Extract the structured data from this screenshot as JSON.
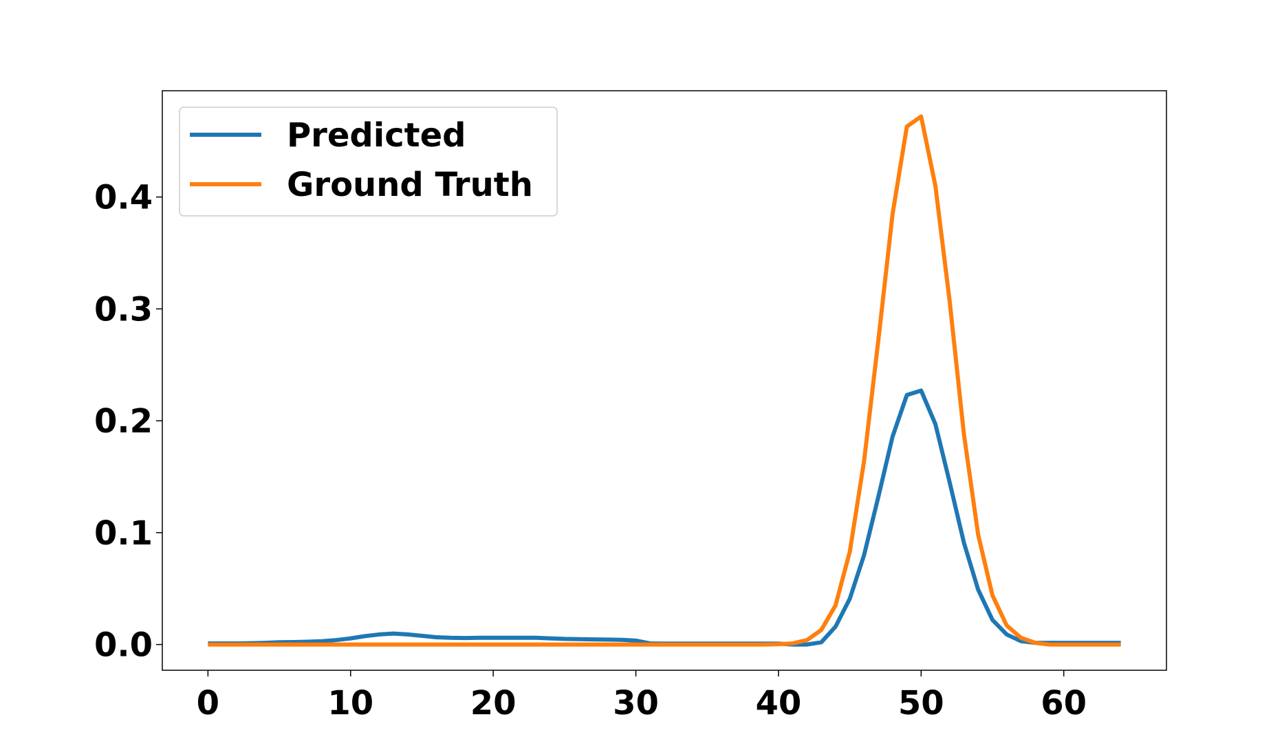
{
  "colors": {
    "predicted": "#1f77b4",
    "ground_truth": "#ff7f0e",
    "axes": "#000000",
    "legend_border": "#cccccc"
  },
  "chart_data": {
    "type": "line",
    "title": "",
    "xlabel": "",
    "ylabel": "",
    "xlim": [
      -3.2,
      67.2
    ],
    "ylim": [
      -0.023,
      0.495
    ],
    "xticks": [
      0,
      10,
      20,
      30,
      40,
      50,
      60
    ],
    "xtick_labels": [
      "0",
      "10",
      "20",
      "30",
      "40",
      "50",
      "60"
    ],
    "yticks": [
      0.0,
      0.1,
      0.2,
      0.3,
      0.4
    ],
    "ytick_labels": [
      "0.0",
      "0.1",
      "0.2",
      "0.3",
      "0.4"
    ],
    "grid": false,
    "legend_position": "top-left",
    "x": [
      0,
      1,
      2,
      3,
      4,
      5,
      6,
      7,
      8,
      9,
      10,
      11,
      12,
      13,
      14,
      15,
      16,
      17,
      18,
      19,
      20,
      21,
      22,
      23,
      24,
      25,
      26,
      27,
      28,
      29,
      30,
      31,
      32,
      33,
      34,
      35,
      36,
      37,
      38,
      39,
      40,
      41,
      42,
      43,
      44,
      45,
      46,
      47,
      48,
      49,
      50,
      51,
      52,
      53,
      54,
      55,
      56,
      57,
      58,
      59,
      60,
      61,
      62,
      63,
      64
    ],
    "series": [
      {
        "name": "Predicted",
        "color": "#1f77b4",
        "values": [
          0.001,
          0.001,
          0.001,
          0.0012,
          0.0015,
          0.002,
          0.0022,
          0.0025,
          0.003,
          0.004,
          0.0055,
          0.0075,
          0.009,
          0.0098,
          0.009,
          0.0078,
          0.0065,
          0.006,
          0.0058,
          0.006,
          0.006,
          0.006,
          0.006,
          0.006,
          0.0055,
          0.005,
          0.0048,
          0.0046,
          0.0044,
          0.0042,
          0.0035,
          0.001,
          0.0008,
          0.0008,
          0.0008,
          0.0008,
          0.0008,
          0.0008,
          0.0008,
          0.0008,
          0.0008,
          0.0,
          0.0,
          0.002,
          0.016,
          0.041,
          0.08,
          0.132,
          0.186,
          0.223,
          0.227,
          0.197,
          0.145,
          0.091,
          0.049,
          0.022,
          0.009,
          0.003,
          0.0015,
          0.0015,
          0.0015,
          0.0015,
          0.0015,
          0.0015,
          0.0015
        ]
      },
      {
        "name": "Ground Truth",
        "color": "#ff7f0e",
        "values": [
          0,
          0,
          0,
          0,
          0,
          0,
          0,
          0,
          0,
          0,
          0,
          0,
          0,
          0,
          0,
          0,
          0,
          0,
          0,
          0,
          0,
          0,
          0,
          0,
          0,
          0,
          0,
          0,
          0,
          0,
          0,
          0,
          0,
          0,
          0,
          0,
          0,
          0,
          0,
          0,
          0.0003,
          0.001,
          0.004,
          0.013,
          0.035,
          0.083,
          0.164,
          0.272,
          0.385,
          0.463,
          0.472,
          0.41,
          0.307,
          0.188,
          0.098,
          0.044,
          0.017,
          0.006,
          0.0015,
          0,
          0,
          0,
          0,
          0,
          0
        ]
      }
    ]
  }
}
